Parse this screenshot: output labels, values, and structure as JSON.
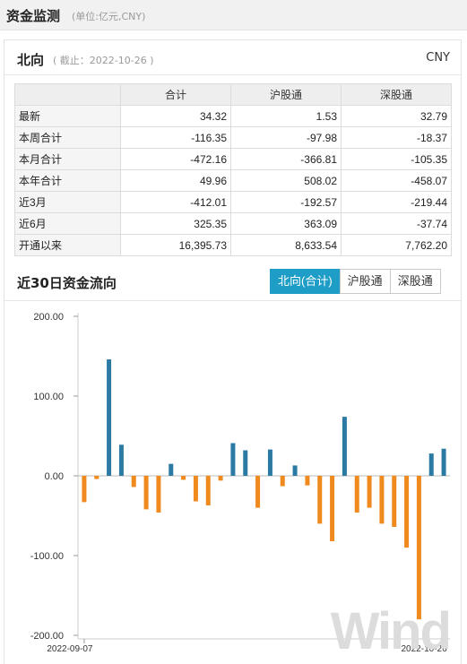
{
  "header": {
    "title": "资金监测",
    "unit": "(单位:亿元,CNY)"
  },
  "northbound": {
    "title": "北向",
    "date_note": "( 截止：2022-10-26 )",
    "currency": "CNY",
    "columns": [
      "合计",
      "沪股通",
      "深股通"
    ],
    "rows": [
      {
        "label": "最新",
        "values": [
          "34.32",
          "1.53",
          "32.79"
        ]
      },
      {
        "label": "本周合计",
        "values": [
          "-116.35",
          "-97.98",
          "-18.37"
        ]
      },
      {
        "label": "本月合计",
        "values": [
          "-472.16",
          "-366.81",
          "-105.35"
        ]
      },
      {
        "label": "本年合计",
        "values": [
          "49.96",
          "508.02",
          "-458.07"
        ]
      },
      {
        "label": "近3月",
        "values": [
          "-412.01",
          "-192.57",
          "-219.44"
        ]
      },
      {
        "label": "近6月",
        "values": [
          "325.35",
          "363.09",
          "-37.74"
        ]
      },
      {
        "label": "开通以来",
        "values": [
          "16,395.73",
          "8,633.54",
          "7,762.20"
        ]
      }
    ]
  },
  "chart_section": {
    "title": "近30日资金流向",
    "tabs": [
      {
        "label": "北向(合计)",
        "active": true
      },
      {
        "label": "沪股通",
        "active": false
      },
      {
        "label": "深股通",
        "active": false
      }
    ]
  },
  "watermark": "Wind",
  "colors": {
    "positive": "#2b7aa4",
    "negative": "#f0891e",
    "accent": "#1e9dc6"
  },
  "chart_data": {
    "type": "bar",
    "title": "近30日资金流向",
    "xlabel": "",
    "ylabel": "",
    "ylim": [
      -200,
      200
    ],
    "yticks": [
      "200.00",
      "100.00",
      "0.00",
      "-100.00",
      "-200.00"
    ],
    "x_start_label": "2022-09-07",
    "x_end_label": "2022-10-26",
    "grid": false,
    "values": [
      -33,
      -4,
      146,
      39,
      -14,
      -42,
      -46,
      15,
      -5,
      -32,
      -37,
      -6,
      41,
      32,
      -40,
      33,
      -13,
      13,
      -12,
      -60,
      -82,
      74,
      -46,
      -40,
      -60,
      -64,
      -90,
      -180,
      28,
      34
    ]
  }
}
